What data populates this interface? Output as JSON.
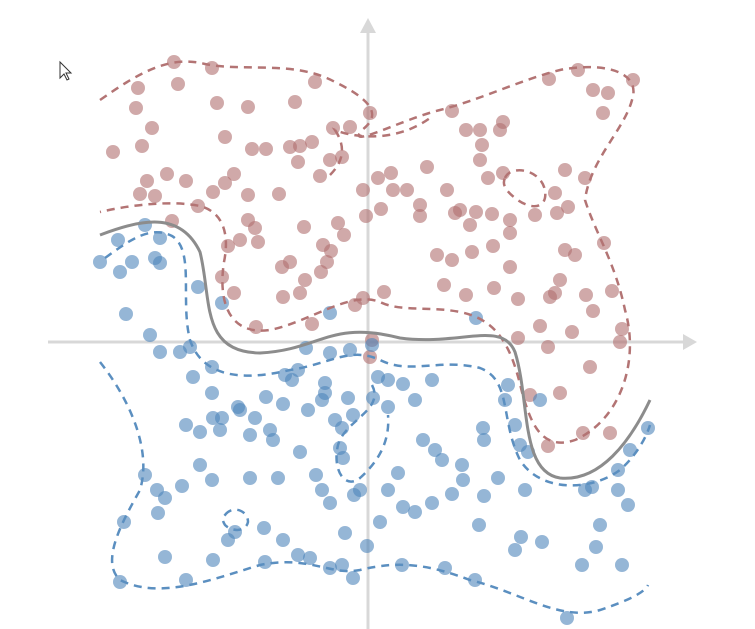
{
  "chart_data": {
    "type": "scatter",
    "xlim": [
      -32,
      33
    ],
    "ylim": [
      -29,
      32
    ],
    "series": [
      {
        "color": "#b07070",
        "x": [
          -19.4,
          -15.6,
          -23,
          -19,
          -23.2,
          -15.1,
          -12,
          -7.3,
          -5.3,
          -21.6,
          -25.5,
          -22.6,
          -14.3,
          -11.6,
          -10.2,
          -7.8,
          -6.8,
          -5.6,
          -3.5,
          -1.8,
          0.2,
          -3.8,
          -2.6,
          -4.8,
          -7,
          -22.1,
          -20.1,
          -18.2,
          -14.3,
          -13.4,
          -22.8,
          -21.3,
          -15.5,
          -12,
          -8.9,
          -19.6,
          -17,
          -12,
          -11.3,
          -6.4,
          -3,
          -0.2,
          1.3,
          -0.5,
          1,
          2.3,
          3.9,
          2.5,
          5.9,
          5.2,
          5.2,
          8.4,
          9.8,
          11.2,
          13.2,
          13.5,
          11.4,
          11.2,
          12,
          13.5,
          7.9,
          9.2,
          8.7,
          10.8,
          12.4,
          10.2,
          14.2,
          16.7,
          18.7,
          18.9,
          20,
          19.7,
          21.7,
          18.1,
          21,
          22.5,
          24,
          23.5,
          26.5,
          -12.8,
          -14,
          -11,
          -7.8,
          -8.6,
          -4.5,
          -3.7,
          -4.7,
          -4.1,
          -2.4,
          -14.6,
          -13.4,
          -8.5,
          -6.8,
          -6.3,
          -1.3,
          -0.5,
          1.6,
          -5.6,
          -11.2,
          6.9,
          8.4,
          10.4,
          12.5,
          14.2,
          14.2,
          7.6,
          9.8,
          12.6,
          15,
          18.2,
          18.7,
          19.2,
          20.7,
          19.7,
          23.6,
          21.8,
          22.5,
          24.4,
          15,
          17.2,
          18,
          20.4,
          25.4,
          25.2,
          22.2,
          19.2,
          16.2,
          18,
          21.5,
          24.2,
          0.4,
          0.2
        ],
        "y": [
          28,
          27.4,
          25.4,
          25.8,
          23.4,
          23.9,
          23.5,
          24,
          26,
          21.4,
          19,
          19.6,
          20.5,
          19.3,
          19.3,
          19.5,
          19.6,
          20,
          21.4,
          21.5,
          22.9,
          18.2,
          18.5,
          16.6,
          18,
          16.1,
          16.8,
          16.1,
          15.9,
          16.8,
          14.8,
          14.6,
          15,
          14.7,
          14.8,
          12.1,
          13.6,
          12.2,
          11.4,
          11.5,
          11.9,
          12.6,
          13.3,
          15.2,
          16.4,
          16.9,
          15.2,
          15.2,
          17.5,
          13.7,
          12.6,
          23.1,
          21.2,
          21.2,
          21.2,
          22,
          19.7,
          18.2,
          16.4,
          16.9,
          15.2,
          13.2,
          12.9,
          13,
          12.8,
          11.7,
          12.2,
          12.7,
          14.9,
          12.9,
          13.5,
          17.2,
          16.4,
          26.3,
          27.2,
          25.2,
          24.9,
          22.9,
          26.2,
          10.2,
          9.6,
          10,
          8,
          7.5,
          9.7,
          9.1,
          7,
          8,
          10.7,
          6.5,
          4.9,
          4.5,
          4.9,
          6.2,
          3.7,
          4.4,
          5,
          1.8,
          1.5,
          8.7,
          8.2,
          9,
          9.6,
          10.9,
          7.5,
          5.7,
          4.7,
          5.4,
          4.3,
          4.5,
          4.9,
          6.2,
          8.7,
          9.2,
          9.9,
          4.7,
          3.1,
          5.1,
          0.4,
          1.6,
          -0.5,
          1,
          1.3,
          0,
          -2.5,
          -5.1,
          -5.3,
          -10.4,
          -9.1,
          -9.1,
          0.2,
          -1.5
        ]
      },
      {
        "color": "#4f86bb",
        "x": [
          -26.8,
          -24.8,
          -23.6,
          -25,
          -22.3,
          -20.8,
          -21.3,
          -20.8,
          -24.2,
          -21.8,
          -20.8,
          -18.8,
          -17.8,
          -17,
          -14.6,
          -3.8,
          -6.2,
          -3.8,
          -1.8,
          0.4,
          10.8,
          -17.5,
          -15.6,
          -15.6,
          -12.8,
          -13,
          -11.3,
          -10.2,
          -8.5,
          -8.3,
          -7.6,
          -7,
          -6,
          -4.6,
          -4.3,
          -2,
          -4.3,
          1,
          2,
          3.5,
          6.4,
          2,
          4.7,
          0.5,
          -18.2,
          -16.8,
          -15.5,
          -14.6,
          -14.8,
          -11.8,
          -9.8,
          -9.5,
          -3.3,
          -2.6,
          -1.5,
          -6.8,
          -2.8,
          -2.5,
          -16.8,
          -15.6,
          -11.8,
          -9,
          -5.2,
          -4.6,
          -3.8,
          -1.4,
          -0.8,
          3,
          2,
          3.5,
          4.7,
          6.4,
          5.5,
          6.7,
          7.4,
          9.4,
          9.5,
          8.4,
          11.6,
          11.5,
          11.6,
          13,
          13.7,
          14,
          14.7,
          15.2,
          16,
          17.2,
          15.7,
          21.7,
          22.4,
          25,
          26,
          25,
          26.2,
          28,
          -22.3,
          -21.1,
          -20.3,
          -18.6,
          -21,
          -24.4,
          -14,
          -13.3,
          -10.4,
          -8.5,
          -7,
          -5.8,
          -3.8,
          -2.6,
          -2.3,
          -0.1,
          1.2,
          -1.5,
          -20.3,
          -15.5,
          -10.3,
          -18.2,
          -24.8,
          11.1,
          15.3,
          17.4,
          14.7,
          22.8,
          23.2,
          21.4,
          25.4,
          19.9,
          3.4,
          7.7,
          10.7
        ],
        "y": [
          8,
          7,
          8,
          10.2,
          11.7,
          10.4,
          8.4,
          7.9,
          2.8,
          0.7,
          -1,
          -1,
          -0.5,
          5.5,
          3.9,
          2.9,
          -0.6,
          -1.1,
          -0.8,
          -0.3,
          2.4,
          -3.5,
          -2.5,
          -5.1,
          -6.8,
          -6.5,
          -7.6,
          -5.5,
          -6.2,
          -3.3,
          -3.8,
          -2.8,
          -6.8,
          -5.8,
          -5.1,
          -5.6,
          -4.1,
          -3.5,
          -3.8,
          -4.2,
          -3.8,
          -6.5,
          -5.8,
          -5.6,
          -8.3,
          -9,
          -7.6,
          -7.6,
          -8.8,
          -9.3,
          -8.8,
          -9.8,
          -7.8,
          -8.6,
          -7.3,
          -11,
          -10.6,
          -11.6,
          -12.3,
          -13.8,
          -13.6,
          -13.6,
          -13.3,
          -14.8,
          -16.1,
          -15.3,
          -14.8,
          -13.1,
          -14.8,
          -16.5,
          -17,
          -16.1,
          -9.8,
          -10.8,
          -11.8,
          -12.3,
          -13.8,
          -15.2,
          -9.8,
          -8.6,
          -15.4,
          -13.6,
          -5.8,
          -4.3,
          -8.3,
          -10.3,
          -11,
          -5.8,
          -14.8,
          -14.8,
          -14.5,
          -14.8,
          -16.3,
          -12.8,
          -10.8,
          -8.6,
          -13.3,
          -14.8,
          -15.6,
          -14.4,
          -17.1,
          -18,
          -19.8,
          -19,
          -18.6,
          -19.8,
          -21.3,
          -21.6,
          -22.6,
          -22.3,
          -19.1,
          -20.4,
          -18,
          -23.6,
          -21.5,
          -21.8,
          -22,
          -23.8,
          -24,
          -18.3,
          -19.5,
          -20,
          -20.8,
          -20.5,
          -18.3,
          -22.3,
          -22.3,
          -27.6,
          -22.3,
          -22.6,
          -23.8
        ]
      }
    ]
  }
}
